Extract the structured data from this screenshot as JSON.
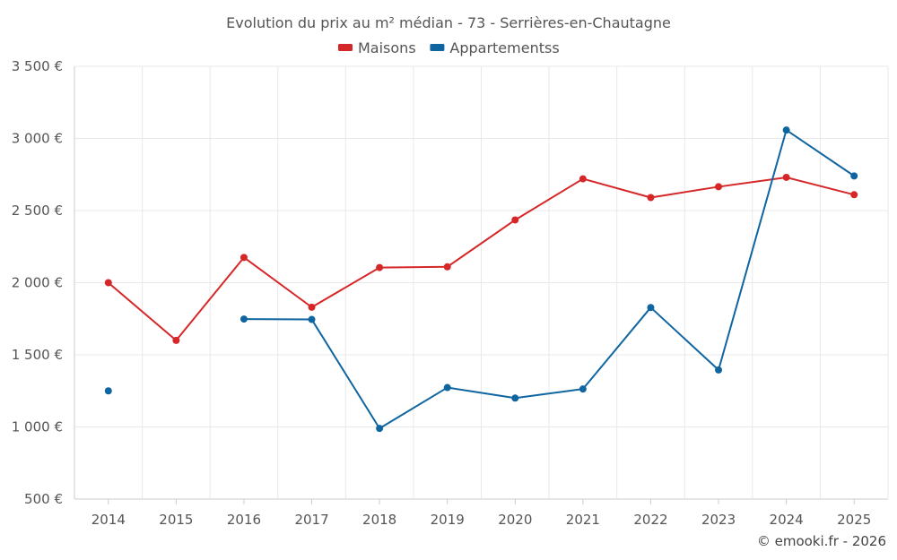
{
  "chart_data": {
    "type": "line",
    "title": "Evolution du prix au m² médian - 73 - Serrières-en-Chautagne",
    "xlabel": "",
    "ylabel": "",
    "categories": [
      "2014",
      "2015",
      "2016",
      "2017",
      "2018",
      "2019",
      "2020",
      "2021",
      "2022",
      "2023",
      "2024",
      "2025"
    ],
    "ylim": [
      500,
      3500
    ],
    "yticks": [
      500,
      1000,
      1500,
      2000,
      2500,
      3000,
      3500
    ],
    "ytick_labels": [
      "500 €",
      "1 000 €",
      "1 500 €",
      "2 000 €",
      "2 500 €",
      "3 000 €",
      "3 500 €"
    ],
    "grid": true,
    "legend_position": "top-center",
    "series": [
      {
        "name": "Maisons",
        "color": "#d62728",
        "values": [
          2000,
          1600,
          2175,
          1830,
          2105,
          2110,
          2435,
          2720,
          2590,
          2665,
          2730,
          2610
        ]
      },
      {
        "name": "Appartementss",
        "color": "#0f65a0",
        "values": [
          1250,
          null,
          1748,
          1745,
          990,
          1273,
          1200,
          1263,
          1828,
          1395,
          3058,
          2740
        ]
      }
    ]
  },
  "credit": "© emooki.fr - 2026"
}
